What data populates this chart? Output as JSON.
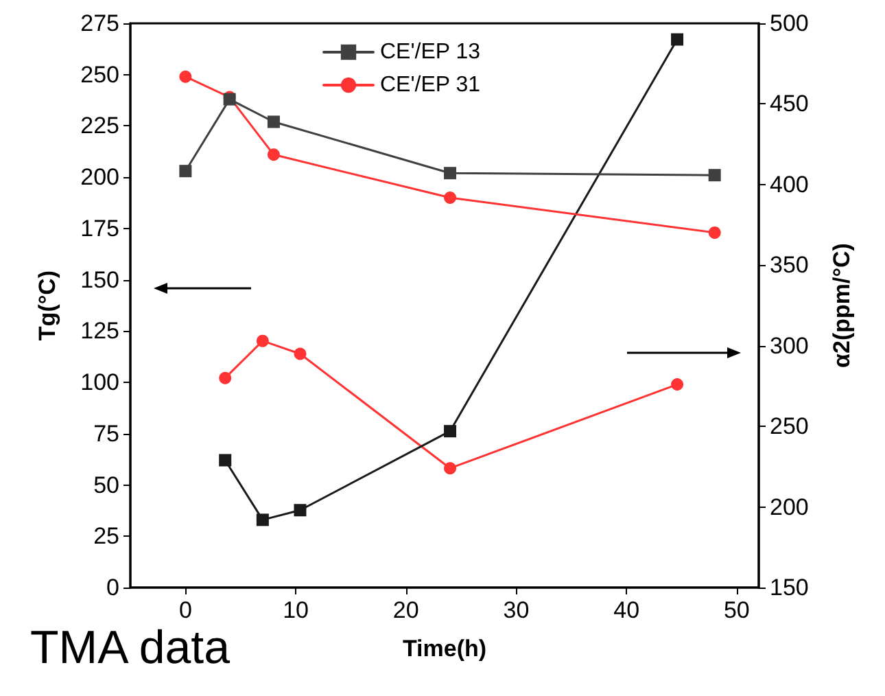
{
  "chart_data": {
    "type": "line",
    "xlabel": "Time(h)",
    "ylabel": "Tg(°C)",
    "y2label": "α2(ppm/°C)",
    "xlim": [
      -5,
      52
    ],
    "xticks": [
      0,
      10,
      20,
      30,
      40,
      50
    ],
    "ylim": [
      0,
      275
    ],
    "yticks": [
      0,
      25,
      50,
      75,
      100,
      125,
      150,
      175,
      200,
      225,
      250,
      275
    ],
    "y2lim": [
      150,
      500
    ],
    "y2ticks": [
      150,
      200,
      250,
      300,
      350,
      400,
      450,
      500
    ],
    "grid": false,
    "legend": "top",
    "line_style": "solid",
    "annotations": [
      "TMA data"
    ],
    "series": [
      {
        "name": "CE'/EP 13",
        "color": "#404040",
        "marker": "square",
        "x": [
          0,
          4,
          8,
          24,
          48
        ],
        "values": [
          203,
          238,
          227,
          202,
          201
        ]
      },
      {
        "name": "CE'/EP 31",
        "color": "#ff3333",
        "marker": "circle",
        "x": [
          0,
          4,
          8,
          24,
          48
        ],
        "values": [
          249,
          239,
          211,
          190,
          173
        ]
      },
      {
        "color": "#1a1a1a",
        "marker": "square",
        "axis": "y2",
        "x": [
          3.6,
          7,
          10.4,
          24,
          44.6
        ],
        "values": [
          229,
          192,
          198,
          247,
          490
        ]
      },
      {
        "color": "#ff3333",
        "marker": "circle",
        "axis": "y2",
        "x": [
          3.6,
          7,
          10.4,
          24,
          44.6
        ],
        "values": [
          280,
          303,
          295,
          224,
          276
        ]
      }
    ]
  }
}
